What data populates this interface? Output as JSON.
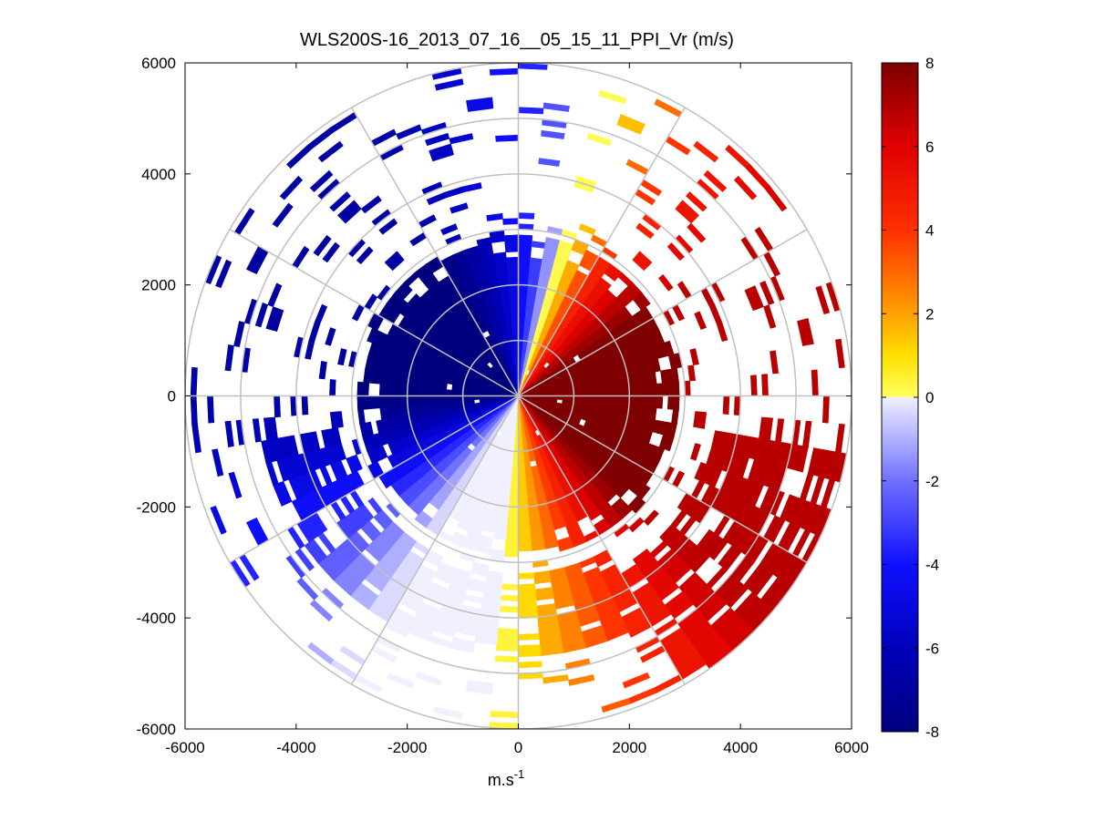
{
  "window": {
    "title": "WLS200S-16_2013_07_16__05_15_11_PPI_Vr (m/s)"
  },
  "chart_data": {
    "type": "polar-ppi-scan",
    "title": "WLS200S-16_2013_07_16__05_15_11_PPI_Vr (m/s)",
    "xlabel": "m.s",
    "xlabel_superscript": "-1",
    "ylabel": "",
    "xlim": [
      -6000,
      6000
    ],
    "ylim": [
      -6000,
      6000
    ],
    "xticks": [
      -6000,
      -4000,
      -2000,
      0,
      2000,
      4000,
      6000
    ],
    "yticks": [
      -6000,
      -4000,
      -2000,
      0,
      2000,
      4000,
      6000
    ],
    "xtick_labels": [
      "-6000",
      "-4000",
      "-2000",
      "0",
      "2000",
      "4000",
      "6000"
    ],
    "ytick_labels": [
      "-6000",
      "-4000",
      "-2000",
      "0",
      "2000",
      "4000",
      "6000"
    ],
    "range_rings": [
      1000,
      2000,
      3000,
      4000,
      5000,
      6000
    ],
    "spoke_bearings_deg": [
      0,
      30,
      60,
      90,
      120,
      150,
      180,
      210,
      240,
      270,
      300,
      330
    ],
    "colorbar": {
      "min": -8,
      "max": 8,
      "ticks": [
        8,
        6,
        4,
        2,
        0,
        -2,
        -4,
        -6,
        -8
      ],
      "tick_labels": [
        "8",
        "6",
        "4",
        "2",
        "0",
        "-2",
        "-4",
        "-6",
        "-8"
      ],
      "colormap": "blue-white-yellow-red",
      "color_stops": [
        {
          "v": -8,
          "c": "#00007f"
        },
        {
          "v": -6,
          "c": "#0000bb"
        },
        {
          "v": -4,
          "c": "#1010ff"
        },
        {
          "v": -2,
          "c": "#7070ff"
        },
        {
          "v": 0,
          "c": "#f0f0ff"
        },
        {
          "v": 0.01,
          "c": "#ffff60"
        },
        {
          "v": 1,
          "c": "#ffe000"
        },
        {
          "v": 2,
          "c": "#ffa000"
        },
        {
          "v": 4,
          "c": "#ff3000"
        },
        {
          "v": 6,
          "c": "#e00000"
        },
        {
          "v": 8,
          "c": "#7f0000"
        }
      ]
    },
    "velocity_model": {
      "description": "Radial velocity dipole: positive (away) to the east, negative (toward) to the west",
      "peak_abs_velocity": 8,
      "direction_of_max_positive_deg": 95,
      "direction_of_max_negative_deg": 300,
      "dense_coverage_max_range_m": 2900,
      "outer_band_south_range_m": [
        3200,
        4700
      ],
      "outer_band_southeast_range_m": [
        3600,
        6000
      ],
      "sparse_coverage_max_range_m": 6000
    }
  }
}
